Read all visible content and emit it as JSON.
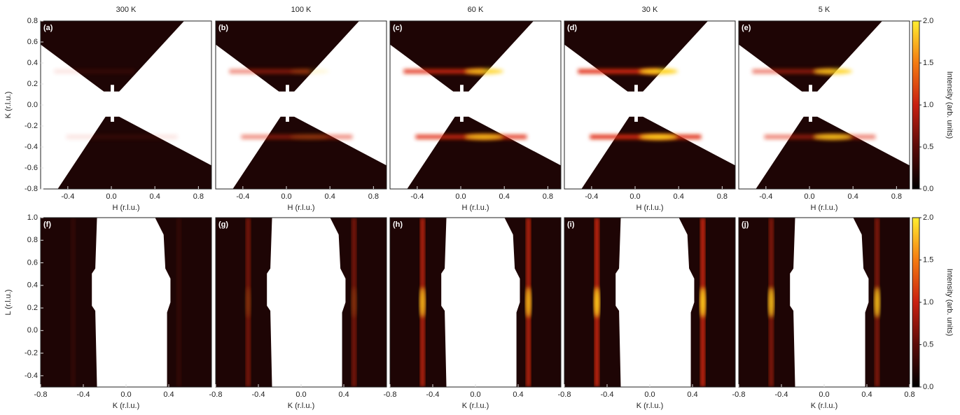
{
  "chart_data": [
    {
      "type": "heatmap",
      "panel_label": "(a)",
      "title": "300 K",
      "xlabel": "H (r.l.u.)",
      "ylabel": "K (r.l.u.)",
      "xlim": [
        -0.65,
        0.92
      ],
      "ylim": [
        -0.8,
        0.8
      ],
      "xticks": [
        -0.4,
        {
          "value": 0,
          "label": "0.0"
        },
        0.4,
        0.8
      ],
      "yticks": [
        -0.8,
        -0.6,
        -0.4,
        -0.2,
        {
          "value": 0,
          "label": "0.0"
        },
        0.2,
        0.4,
        0.6,
        0.8
      ]
    },
    {
      "type": "heatmap",
      "panel_label": "(b)",
      "title": "100 K",
      "xlabel": "H (r.l.u.)",
      "xlim": [
        -0.65,
        0.92
      ],
      "ylim": [
        -0.8,
        0.8
      ],
      "xticks": [
        -0.4,
        {
          "value": 0,
          "label": "0.0"
        },
        0.4,
        0.8
      ]
    },
    {
      "type": "heatmap",
      "panel_label": "(c)",
      "title": "60 K",
      "xlabel": "H (r.l.u.)",
      "xlim": [
        -0.65,
        0.92
      ],
      "ylim": [
        -0.8,
        0.8
      ],
      "xticks": [
        -0.4,
        {
          "value": 0,
          "label": "0.0"
        },
        0.4,
        0.8
      ]
    },
    {
      "type": "heatmap",
      "panel_label": "(d)",
      "title": "30 K",
      "xlabel": "H (r.l.u.)",
      "xlim": [
        -0.65,
        0.92
      ],
      "ylim": [
        -0.8,
        0.8
      ],
      "xticks": [
        -0.4,
        {
          "value": 0,
          "label": "0.0"
        },
        0.4,
        0.8
      ]
    },
    {
      "type": "heatmap",
      "panel_label": "(e)",
      "title": "5 K",
      "xlabel": "H (r.l.u.)",
      "xlim": [
        -0.65,
        0.92
      ],
      "ylim": [
        -0.8,
        0.8
      ],
      "xticks": [
        -0.4,
        {
          "value": 0,
          "label": "0.0"
        },
        0.4,
        0.8
      ],
      "colorbar": {
        "label": "Intensity (arb. units)",
        "lim": [
          0,
          2
        ],
        "ticks": [
          {
            "value": 0,
            "label": "0.0"
          },
          0.5,
          {
            "value": 1,
            "label": "1.0"
          },
          1.5,
          {
            "value": 2,
            "label": "2.0"
          }
        ]
      }
    },
    {
      "type": "heatmap",
      "panel_label": "(f)",
      "xlabel": "K (r.l.u.)",
      "ylabel": "L (r.l.u.)",
      "xlim": [
        -0.8,
        0.8
      ],
      "ylim": [
        -0.5,
        1.0
      ],
      "xticks": [
        -0.8,
        -0.4,
        {
          "value": 0,
          "label": "0.0"
        },
        0.4
      ],
      "yticks": [
        -0.4,
        -0.2,
        {
          "value": 0,
          "label": "0.0"
        },
        0.2,
        0.4,
        0.6,
        0.8,
        {
          "value": 1,
          "label": "1.0"
        }
      ]
    },
    {
      "type": "heatmap",
      "panel_label": "(g)",
      "xlabel": "K (r.l.u.)",
      "xlim": [
        -0.8,
        0.8
      ],
      "ylim": [
        -0.5,
        1.0
      ],
      "xticks": [
        -0.8,
        -0.4,
        {
          "value": 0,
          "label": "0.0"
        },
        0.4
      ]
    },
    {
      "type": "heatmap",
      "panel_label": "(h)",
      "xlabel": "K (r.l.u.)",
      "xlim": [
        -0.8,
        0.8
      ],
      "ylim": [
        -0.5,
        1.0
      ],
      "xticks": [
        -0.8,
        -0.4,
        {
          "value": 0,
          "label": "0.0"
        },
        0.4
      ]
    },
    {
      "type": "heatmap",
      "panel_label": "(i)",
      "xlabel": "K (r.l.u.)",
      "xlim": [
        -0.8,
        0.8
      ],
      "ylim": [
        -0.5,
        1.0
      ],
      "xticks": [
        -0.8,
        -0.4,
        {
          "value": 0,
          "label": "0.0"
        },
        0.4
      ]
    },
    {
      "type": "heatmap",
      "panel_label": "(j)",
      "xlabel": "K (r.l.u.)",
      "xlim": [
        -0.8,
        0.8
      ],
      "ylim": [
        -0.5,
        1.0
      ],
      "xticks": [
        -0.8,
        -0.4,
        {
          "value": 0,
          "label": "0.0"
        },
        0.4,
        0.8
      ],
      "colorbar": {
        "label": "Intensity (arb. units)",
        "lim": [
          0,
          2
        ],
        "ticks": [
          {
            "value": 0,
            "label": "0.0"
          },
          0.5,
          {
            "value": 1,
            "label": "1.0"
          },
          1.5,
          {
            "value": 2,
            "label": "2.0"
          }
        ]
      }
    }
  ]
}
